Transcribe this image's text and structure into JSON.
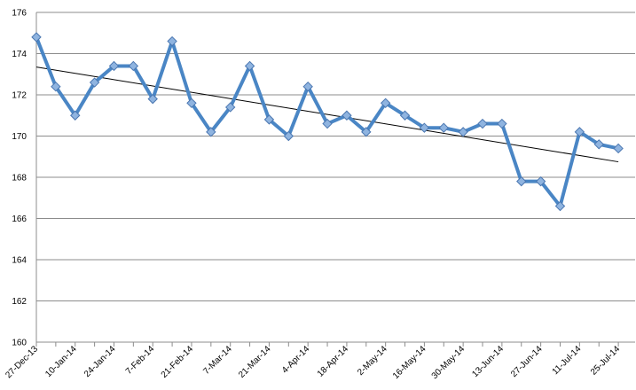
{
  "chart_data": {
    "type": "line",
    "categories": [
      "27-Dec-13",
      null,
      "10-Jan-14",
      null,
      "24-Jan-14",
      null,
      "7-Feb-14",
      null,
      "21-Feb-14",
      null,
      "7-Mar-14",
      null,
      "21-Mar-14",
      null,
      "4-Apr-14",
      null,
      "18-Apr-14",
      null,
      "2-May-14",
      null,
      "16-May-14",
      null,
      "30-May-14",
      null,
      "13-Jun-14",
      null,
      "27-Jun-14",
      null,
      "11-Jul-14",
      null,
      "25-Jul-14"
    ],
    "series": [
      {
        "color": "#4a86c5",
        "values": [
          174.8,
          172.4,
          171.0,
          172.6,
          173.4,
          173.4,
          171.8,
          174.6,
          171.6,
          170.2,
          171.4,
          173.4,
          170.8,
          170.0,
          172.4,
          170.6,
          171.0,
          170.2,
          171.6,
          171.0,
          170.4,
          170.4,
          170.2,
          170.6,
          170.6,
          167.8,
          167.8,
          166.6,
          170.2,
          169.6,
          169.4
        ]
      }
    ],
    "trendline": {
      "color": "#000000",
      "values": [
        173.35,
        168.75
      ]
    },
    "ylim": [
      160,
      176
    ],
    "yticks": [
      160,
      162,
      164,
      166,
      168,
      170,
      172,
      174,
      176
    ],
    "grid": true
  }
}
